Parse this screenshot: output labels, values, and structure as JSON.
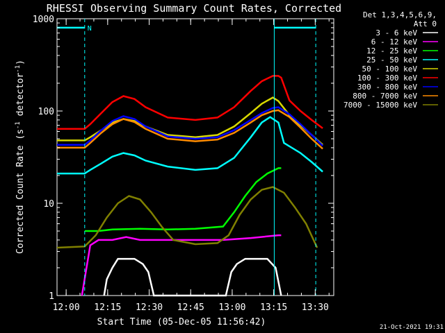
{
  "chart_data": {
    "type": "line",
    "title": "RHESSI Observing Summary Count Rates, Corrected",
    "xlabel": "Start Time (05-Dec-05 11:56:42)",
    "ylabel": "Corrected Count Rate (s⁻¹ detector⁻¹)",
    "ylabel_main": "Corrected Count Rate (s",
    "ylabel_sup1": "-1",
    "ylabel_mid": " detector",
    "ylabel_sup2": "-1",
    "ylabel_end": ")",
    "x_tick_labels": [
      "12:00",
      "12:15",
      "12:30",
      "12:45",
      "13:00",
      "13:15",
      "13:30"
    ],
    "x_ticks_min": [
      3.3,
      18.3,
      33.3,
      48.3,
      63.3,
      78.3,
      93.3
    ],
    "xlim": [
      0,
      100
    ],
    "y_scale": "log",
    "ylim": [
      1,
      1000
    ],
    "y_tick_labels": [
      "1",
      "10",
      "100",
      "1000"
    ],
    "grid": false,
    "legend_placement": "right",
    "legend_header": [
      "Det 1,3,4,5,6,9,",
      "Att 0"
    ],
    "attenuator_label": "N",
    "series": [
      {
        "name": "3 - 6 keV",
        "color": "#ffffff"
      },
      {
        "name": "6 - 12 keV",
        "color": "#ff00ff"
      },
      {
        "name": "12 - 25 keV",
        "color": "#00ff00"
      },
      {
        "name": "25 - 50 keV",
        "color": "#00ffff"
      },
      {
        "name": "50 - 100 keV",
        "color": "#d8d800"
      },
      {
        "name": "100 - 300 keV",
        "color": "#ff0000"
      },
      {
        "name": "300 - 800 keV",
        "color": "#0000ff"
      },
      {
        "name": "800 - 7000 keV",
        "color": "#ff8c00"
      },
      {
        "name": "7000 - 15000 keV",
        "color": "#808000"
      }
    ],
    "series_data": [
      {
        "name": "3 - 6 keV",
        "x": [
          17,
          18,
          20,
          22,
          25,
          28,
          31,
          33,
          35,
          61,
          63,
          65,
          68,
          72,
          76,
          79,
          81
        ],
        "y": [
          1,
          1.5,
          2,
          2.5,
          2.5,
          2.5,
          2.2,
          1.8,
          1,
          1,
          1.8,
          2.2,
          2.5,
          2.5,
          2.5,
          2,
          1
        ]
      },
      {
        "name": "6 - 12 keV",
        "x": [
          9,
          12,
          15,
          20,
          25,
          30,
          40,
          50,
          60,
          70,
          80,
          81
        ],
        "y": [
          1,
          3.5,
          4,
          4,
          4.3,
          4,
          4,
          4,
          4,
          4.2,
          4.5,
          4.5
        ]
      },
      {
        "name": "12 - 25 keV",
        "x": [
          10,
          15,
          20,
          30,
          40,
          50,
          60,
          64,
          68,
          72,
          76,
          80,
          81
        ],
        "y": [
          5,
          5,
          5.2,
          5.3,
          5.2,
          5.3,
          5.6,
          8,
          12,
          17,
          21,
          24,
          24
        ]
      },
      {
        "name": "25 - 50 keV",
        "x": [
          0,
          10,
          12,
          16,
          20,
          24,
          28,
          32,
          40,
          50,
          58,
          64,
          70,
          74,
          77,
          80,
          82,
          88,
          92,
          96
        ],
        "y": [
          21,
          21,
          23,
          27,
          32,
          35,
          33,
          29,
          25,
          23,
          24,
          31,
          52,
          75,
          86,
          75,
          45,
          35,
          28,
          22
        ]
      },
      {
        "name": "50 - 100 keV",
        "x": [
          0,
          10,
          12,
          16,
          20,
          24,
          28,
          32,
          40,
          50,
          58,
          64,
          70,
          74,
          78,
          80,
          84,
          88,
          92,
          96
        ],
        "y": [
          48,
          48,
          52,
          62,
          75,
          82,
          78,
          68,
          55,
          52,
          55,
          68,
          95,
          120,
          140,
          128,
          90,
          70,
          55,
          43
        ]
      },
      {
        "name": "100 - 300 keV",
        "x": [
          0,
          10,
          12,
          16,
          20,
          24,
          28,
          32,
          40,
          50,
          58,
          64,
          70,
          74,
          78,
          80,
          81,
          84,
          88,
          92,
          96
        ],
        "y": [
          64,
          64,
          72,
          95,
          125,
          145,
          135,
          110,
          85,
          80,
          85,
          110,
          165,
          210,
          240,
          240,
          230,
          130,
          100,
          80,
          65
        ]
      },
      {
        "name": "300 - 800 keV",
        "x": [
          0,
          10,
          12,
          16,
          20,
          24,
          28,
          32,
          40,
          50,
          58,
          64,
          70,
          74,
          78,
          80,
          84,
          88,
          92,
          96
        ],
        "y": [
          43,
          43,
          48,
          62,
          78,
          88,
          82,
          68,
          53,
          50,
          52,
          62,
          80,
          95,
          108,
          110,
          92,
          72,
          55,
          42
        ]
      },
      {
        "name": "800 - 7000 keV",
        "x": [
          0,
          10,
          12,
          16,
          20,
          24,
          28,
          32,
          40,
          50,
          58,
          64,
          70,
          74,
          78,
          80,
          84,
          88,
          92,
          96
        ],
        "y": [
          40,
          40,
          45,
          58,
          72,
          82,
          76,
          64,
          50,
          47,
          49,
          58,
          75,
          90,
          100,
          102,
          86,
          66,
          50,
          39
        ]
      },
      {
        "name": "7000 - 15000 keV",
        "x": [
          0,
          10,
          14,
          18,
          22,
          26,
          30,
          34,
          38,
          42,
          50,
          58,
          62,
          66,
          70,
          74,
          78,
          82,
          86,
          90,
          94
        ],
        "y": [
          3.3,
          3.4,
          4.5,
          7,
          10,
          12,
          11,
          8,
          5.5,
          4,
          3.6,
          3.7,
          4.5,
          7.5,
          11,
          14,
          15,
          13,
          9,
          6,
          3.3
        ]
      }
    ],
    "attenuator_intervals": [
      [
        0,
        10
      ],
      [
        78.5,
        93.5
      ]
    ],
    "attenuator_level": 800
  },
  "footer": {
    "date": "21-Oct-2021 19:31"
  }
}
